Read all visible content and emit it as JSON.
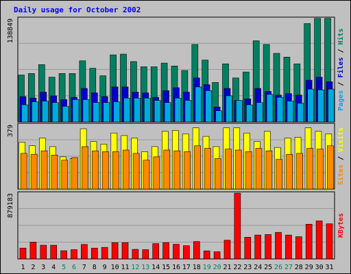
{
  "chart_data": {
    "type": "bar",
    "title": "Daily usage for October 2002",
    "categories": [
      "1",
      "2",
      "3",
      "4",
      "5",
      "6",
      "7",
      "8",
      "9",
      "10",
      "11",
      "12",
      "13",
      "14",
      "15",
      "16",
      "17",
      "18",
      "19",
      "20",
      "21",
      "22",
      "23",
      "24",
      "25",
      "26",
      "27",
      "28",
      "29",
      "30",
      "31"
    ],
    "weekend_days": [
      "5",
      "6",
      "12",
      "13",
      "19",
      "20",
      "26",
      "27"
    ],
    "panels": [
      {
        "id": "hits",
        "ymax_label": "138849",
        "ymax": 138849,
        "legend": [
          {
            "text": "Pages",
            "color": "#00aadd"
          },
          {
            "text": "Files",
            "color": "#0000cc"
          },
          {
            "text": "Hits",
            "color": "#008060"
          }
        ],
        "series": [
          {
            "name": "Hits",
            "color": "#008060",
            "values": [
              63000,
              65000,
              77000,
              60000,
              65000,
              65000,
              82000,
              72000,
              62000,
              90000,
              91000,
              81000,
              74000,
              74000,
              79000,
              75000,
              69000,
              104000,
              83000,
              53000,
              78000,
              59000,
              67000,
              109000,
              104000,
              92000,
              87000,
              78000,
              132000,
              139000,
              139000
            ]
          },
          {
            "name": "Files",
            "color": "#0000cc",
            "values": [
              34000,
              32000,
              40000,
              35000,
              30000,
              33000,
              45000,
              39000,
              34000,
              47000,
              47000,
              40000,
              39000,
              33000,
              42000,
              46000,
              40000,
              59000,
              50000,
              20000,
              45000,
              29000,
              31000,
              45000,
              41000,
              36000,
              38000,
              36000,
              56000,
              60000,
              54000
            ]
          },
          {
            "name": "Pages",
            "color": "#00aadd",
            "values": [
              23000,
              27000,
              28000,
              26000,
              21000,
              30000,
              30000,
              26000,
              26000,
              27000,
              32000,
              32000,
              32000,
              29000,
              26000,
              32000,
              29000,
              47000,
              42000,
              15000,
              35000,
              29000,
              23000,
              26000,
              37000,
              33000,
              28000,
              25000,
              44000,
              43000,
              44000
            ]
          }
        ]
      },
      {
        "id": "visits",
        "ymax_label": "379",
        "ymax": 379,
        "legend": [
          {
            "text": "Sites",
            "color": "#ff8800"
          },
          {
            "text": "Visits",
            "color": "#ffff00"
          }
        ],
        "series": [
          {
            "name": "Visits",
            "color": "#ffff00",
            "values": [
              275,
              255,
              300,
              250,
              190,
              180,
              355,
              280,
              265,
              330,
              315,
              300,
              220,
              250,
              340,
              345,
              325,
              360,
              310,
              250,
              360,
              360,
              330,
              280,
              340,
              245,
              300,
              305,
              360,
              340,
              325
            ]
          },
          {
            "name": "Sites",
            "color": "#ff8800",
            "values": [
              210,
              205,
              225,
              200,
              170,
              185,
              250,
              225,
              220,
              220,
              230,
              210,
              170,
              190,
              230,
              225,
              220,
              255,
              240,
              180,
              235,
              230,
              220,
              240,
              225,
              175,
              205,
              210,
              240,
              235,
              255
            ]
          }
        ]
      },
      {
        "id": "kbytes",
        "ymax_label": "879183",
        "ymax": 879183,
        "legend": [
          {
            "text": "KBytes",
            "color": "#ff0000"
          }
        ],
        "series": [
          {
            "name": "KBytes",
            "color": "#ff0000",
            "values": [
              145000,
              224000,
              183000,
              183000,
              110000,
              125000,
              194000,
              145000,
              155000,
              218000,
              218000,
              128000,
              125000,
              205000,
              218000,
              196000,
              177000,
              233000,
              108000,
              96000,
              250000,
              879000,
              290000,
              320000,
              327000,
              355000,
              320000,
              298000,
              464000,
              508000,
              470000
            ]
          }
        ]
      }
    ]
  }
}
